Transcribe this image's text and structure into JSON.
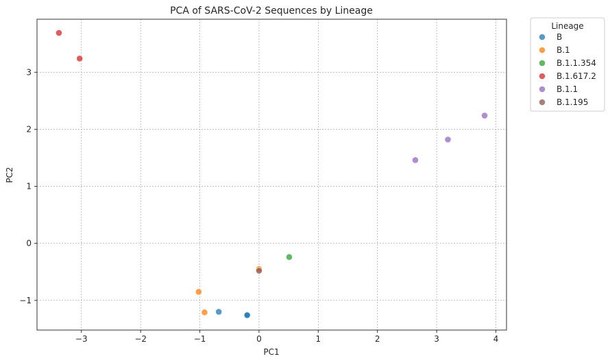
{
  "chart_data": {
    "type": "scatter",
    "title": "PCA of SARS-CoV-2 Sequences by Lineage",
    "xlabel": "PC1",
    "ylabel": "PC2",
    "xlim": [
      -3.75,
      4.18
    ],
    "ylim": [
      -1.52,
      3.93
    ],
    "xticks": [
      -3,
      -2,
      -1,
      0,
      1,
      2,
      3,
      4
    ],
    "yticks": [
      -1,
      0,
      1,
      2,
      3
    ],
    "xtick_labels": [
      "−3",
      "−2",
      "−1",
      "0",
      "1",
      "2",
      "3",
      "4"
    ],
    "ytick_labels": [
      "−1",
      "0",
      "1",
      "2",
      "3"
    ],
    "grid": true,
    "legend": {
      "title": "Lineage",
      "placement": "outside-top-right"
    },
    "series": [
      {
        "name": "B",
        "color": "#1f77b4",
        "points": [
          {
            "x": -0.68,
            "y": -1.2
          },
          {
            "x": -0.2,
            "y": -1.25
          },
          {
            "x": -0.2,
            "y": -1.26
          }
        ]
      },
      {
        "name": "B.1",
        "color": "#ff7f0e",
        "points": [
          {
            "x": -1.02,
            "y": -0.85
          },
          {
            "x": -0.92,
            "y": -1.21
          },
          {
            "x": 0.0,
            "y": -0.45
          }
        ]
      },
      {
        "name": "B.1.1.354",
        "color": "#2ca02c",
        "points": [
          {
            "x": 0.51,
            "y": -0.24
          }
        ]
      },
      {
        "name": "B.1.617.2",
        "color": "#d62728",
        "points": [
          {
            "x": -3.38,
            "y": 3.69
          },
          {
            "x": -3.03,
            "y": 3.24
          }
        ]
      },
      {
        "name": "B.1.1",
        "color": "#9467bd",
        "points": [
          {
            "x": 2.64,
            "y": 1.46
          },
          {
            "x": 3.19,
            "y": 1.82
          },
          {
            "x": 3.81,
            "y": 2.24
          }
        ]
      },
      {
        "name": "B.1.195",
        "color": "#8c564b",
        "points": [
          {
            "x": 0.0,
            "y": -0.48
          }
        ]
      }
    ]
  }
}
